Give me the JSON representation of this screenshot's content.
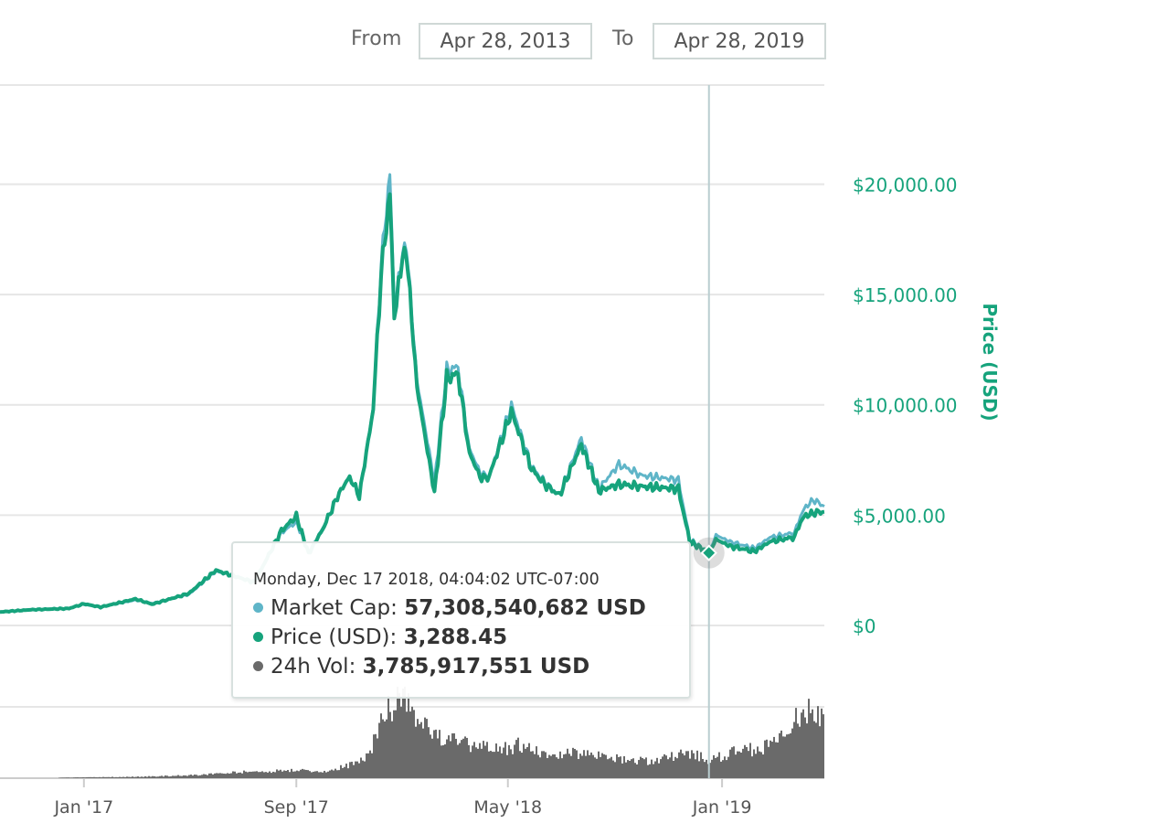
{
  "range": {
    "from_label": "From",
    "from_value": "Apr 28, 2013",
    "to_label": "To",
    "to_value": "Apr 28, 2019"
  },
  "colors": {
    "price": "#16a37c",
    "market_cap": "#5fb5c8",
    "volume": "#6a6a6a",
    "axis_text": "#16a37c",
    "grid": "#e6e6e6"
  },
  "chart_data": {
    "type": "line",
    "x_range": [
      "2016-09-27",
      "2019-04-28"
    ],
    "y_axis": {
      "title": "Price (USD)",
      "ticks": [
        "$0",
        "$5,000.00",
        "$10,000.00",
        "$15,000.00",
        "$20,000.00"
      ],
      "tick_values": [
        0,
        5000,
        10000,
        15000,
        20000
      ],
      "range": [
        -500,
        24500
      ]
    },
    "x_axis": {
      "ticks": [
        "Jan '17",
        "Sep '17",
        "May '18",
        "Jan '19"
      ],
      "tick_dates": [
        "2017-01-01",
        "2017-09-01",
        "2018-05-01",
        "2019-01-01"
      ]
    },
    "grid": true,
    "series": [
      {
        "name": "Market Cap",
        "axis": "market cap (same scale as price)",
        "points": [
          [
            "2016-09-27",
            600
          ],
          [
            "2016-11-01",
            720
          ],
          [
            "2016-12-15",
            780
          ],
          [
            "2017-01-01",
            950
          ],
          [
            "2017-01-20",
            830
          ],
          [
            "2017-03-01",
            1150
          ],
          [
            "2017-03-20",
            1000
          ],
          [
            "2017-05-01",
            1400
          ],
          [
            "2017-06-01",
            2450
          ],
          [
            "2017-07-15",
            2000
          ],
          [
            "2017-08-15",
            4200
          ],
          [
            "2017-09-01",
            4700
          ],
          [
            "2017-09-15",
            3300
          ],
          [
            "2017-10-01",
            4400
          ],
          [
            "2017-10-20",
            6000
          ],
          [
            "2017-11-01",
            6700
          ],
          [
            "2017-11-12",
            5900
          ],
          [
            "2017-11-28",
            9900
          ],
          [
            "2017-12-07",
            16500
          ],
          [
            "2017-12-17",
            20400
          ],
          [
            "2017-12-22",
            14500
          ],
          [
            "2017-12-27",
            16000
          ],
          [
            "2018-01-05",
            17300
          ],
          [
            "2018-01-17",
            11100
          ],
          [
            "2018-02-06",
            6500
          ],
          [
            "2018-02-20",
            11600
          ],
          [
            "2018-03-05",
            11700
          ],
          [
            "2018-03-18",
            8000
          ],
          [
            "2018-04-01",
            6800
          ],
          [
            "2018-04-10",
            6800
          ],
          [
            "2018-05-05",
            10000
          ],
          [
            "2018-05-28",
            7200
          ],
          [
            "2018-06-12",
            6500
          ],
          [
            "2018-06-29",
            5900
          ],
          [
            "2018-07-24",
            8500
          ],
          [
            "2018-08-13",
            6200
          ],
          [
            "2018-09-05",
            7300
          ],
          [
            "2018-10-01",
            6800
          ],
          [
            "2018-11-12",
            6600
          ],
          [
            "2018-11-25",
            3900
          ],
          [
            "2018-12-17",
            3290
          ],
          [
            "2018-12-25",
            4100
          ],
          [
            "2019-01-10",
            3800
          ],
          [
            "2019-02-07",
            3500
          ],
          [
            "2019-02-25",
            4000
          ],
          [
            "2019-03-25",
            4200
          ],
          [
            "2019-04-03",
            5200
          ],
          [
            "2019-04-15",
            5700
          ],
          [
            "2019-04-28",
            5400
          ]
        ]
      },
      {
        "name": "Price (USD)",
        "points": [
          [
            "2016-09-27",
            610
          ],
          [
            "2016-11-01",
            710
          ],
          [
            "2016-12-15",
            770
          ],
          [
            "2017-01-01",
            980
          ],
          [
            "2017-01-20",
            830
          ],
          [
            "2017-03-01",
            1200
          ],
          [
            "2017-03-20",
            960
          ],
          [
            "2017-05-01",
            1450
          ],
          [
            "2017-06-01",
            2500
          ],
          [
            "2017-07-15",
            1950
          ],
          [
            "2017-08-15",
            4300
          ],
          [
            "2017-09-01",
            4950
          ],
          [
            "2017-09-15",
            3250
          ],
          [
            "2017-10-01",
            4350
          ],
          [
            "2017-10-20",
            6000
          ],
          [
            "2017-11-01",
            6750
          ],
          [
            "2017-11-12",
            5850
          ],
          [
            "2017-11-28",
            9800
          ],
          [
            "2017-12-07",
            16000
          ],
          [
            "2017-12-17",
            19500
          ],
          [
            "2017-12-22",
            13900
          ],
          [
            "2017-12-27",
            15800
          ],
          [
            "2018-01-05",
            17000
          ],
          [
            "2018-01-17",
            10800
          ],
          [
            "2018-02-06",
            6000
          ],
          [
            "2018-02-20",
            11200
          ],
          [
            "2018-03-05",
            11400
          ],
          [
            "2018-03-18",
            7800
          ],
          [
            "2018-04-01",
            6600
          ],
          [
            "2018-04-10",
            6800
          ],
          [
            "2018-05-05",
            9700
          ],
          [
            "2018-05-28",
            7100
          ],
          [
            "2018-06-12",
            6400
          ],
          [
            "2018-06-29",
            5900
          ],
          [
            "2018-07-24",
            8200
          ],
          [
            "2018-08-13",
            6100
          ],
          [
            "2018-09-05",
            6400
          ],
          [
            "2018-10-01",
            6300
          ],
          [
            "2018-11-12",
            6200
          ],
          [
            "2018-11-25",
            3800
          ],
          [
            "2018-12-17",
            3288
          ],
          [
            "2018-12-25",
            3900
          ],
          [
            "2019-01-10",
            3600
          ],
          [
            "2019-02-07",
            3350
          ],
          [
            "2019-02-25",
            3800
          ],
          [
            "2019-03-25",
            4000
          ],
          [
            "2019-04-03",
            4900
          ],
          [
            "2019-04-15",
            5100
          ],
          [
            "2019-04-28",
            5150
          ]
        ]
      },
      {
        "name": "24h Vol",
        "axis": "secondary (unlabeled), USD billions",
        "points": [
          [
            "2016-12-01",
            0.1
          ],
          [
            "2017-03-01",
            0.3
          ],
          [
            "2017-05-01",
            0.6
          ],
          [
            "2017-07-01",
            1.3
          ],
          [
            "2017-09-01",
            1.7
          ],
          [
            "2017-10-01",
            1.4
          ],
          [
            "2017-11-01",
            2.8
          ],
          [
            "2017-11-20",
            4.5
          ],
          [
            "2017-12-07",
            12
          ],
          [
            "2017-12-17",
            15
          ],
          [
            "2017-12-22",
            18
          ],
          [
            "2018-01-05",
            16
          ],
          [
            "2018-01-17",
            11
          ],
          [
            "2018-02-06",
            10
          ],
          [
            "2018-02-20",
            8
          ],
          [
            "2018-03-15",
            7
          ],
          [
            "2018-04-15",
            6
          ],
          [
            "2018-05-15",
            7
          ],
          [
            "2018-06-15",
            4.5
          ],
          [
            "2018-07-24",
            5.5
          ],
          [
            "2018-08-15",
            4.5
          ],
          [
            "2018-09-15",
            4
          ],
          [
            "2018-10-15",
            3.5
          ],
          [
            "2018-11-20",
            5.5
          ],
          [
            "2018-12-17",
            3.786
          ],
          [
            "2019-01-15",
            5.5
          ],
          [
            "2019-02-15",
            6.5
          ],
          [
            "2019-03-15",
            9
          ],
          [
            "2019-04-03",
            15
          ],
          [
            "2019-04-15",
            13
          ],
          [
            "2019-04-28",
            12
          ]
        ]
      }
    ]
  },
  "tooltip": {
    "date": "Monday, Dec 17 2018, 04:04:02 UTC-07:00",
    "rows": [
      {
        "label": "Market Cap:",
        "value": "57,308,540,682 USD",
        "color": "#5fb5c8"
      },
      {
        "label": "Price (USD):",
        "value": "3,288.45",
        "color": "#16a37c"
      },
      {
        "label": "24h Vol:",
        "value": "3,785,917,551 USD",
        "color": "#6a6a6a"
      }
    ],
    "hover_date": "2018-12-17",
    "hover_price": 3288
  }
}
